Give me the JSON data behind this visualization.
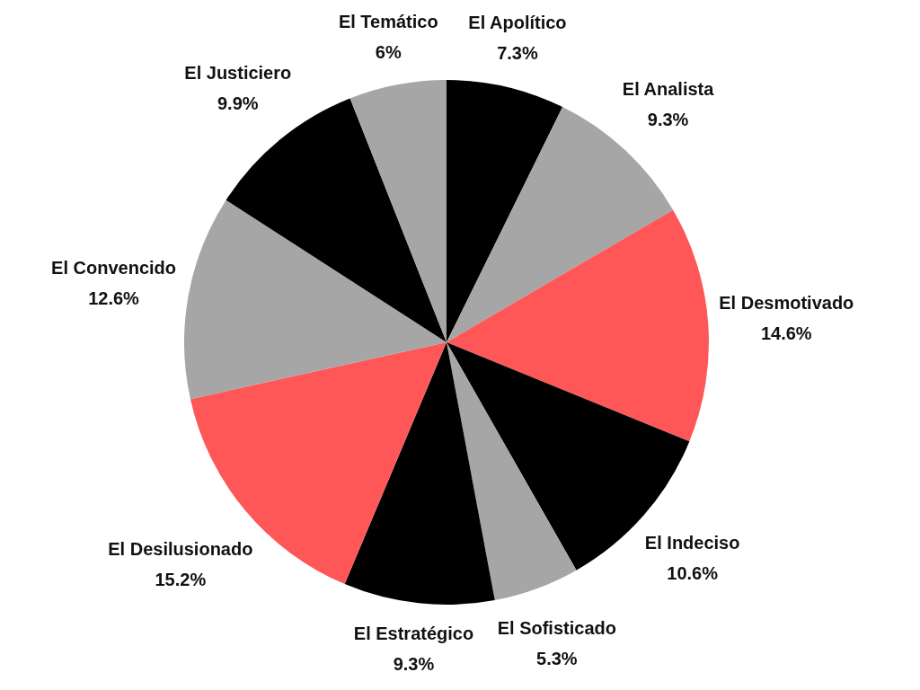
{
  "chart_data": {
    "type": "pie",
    "categories": [
      "El Apolítico",
      "El Analista",
      "El Desmotivado",
      "El Indeciso",
      "El Sofisticado",
      "El Estratégico",
      "El Desilusionado",
      "El Convencido",
      "El Justiciero",
      "El Temático"
    ],
    "values": [
      7.3,
      9.3,
      14.6,
      10.6,
      5.3,
      9.3,
      15.2,
      12.6,
      9.9,
      6
    ],
    "value_labels": [
      "7.3%",
      "9.3%",
      "14.6%",
      "10.6%",
      "5.3%",
      "9.3%",
      "15.2%",
      "12.6%",
      "9.9%",
      "6%"
    ],
    "colors": [
      "#000000",
      "#a6a6a6",
      "#ff5757",
      "#000000",
      "#a6a6a6",
      "#000000",
      "#ff5757",
      "#a6a6a6",
      "#000000",
      "#a6a6a6"
    ],
    "legend": false
  }
}
